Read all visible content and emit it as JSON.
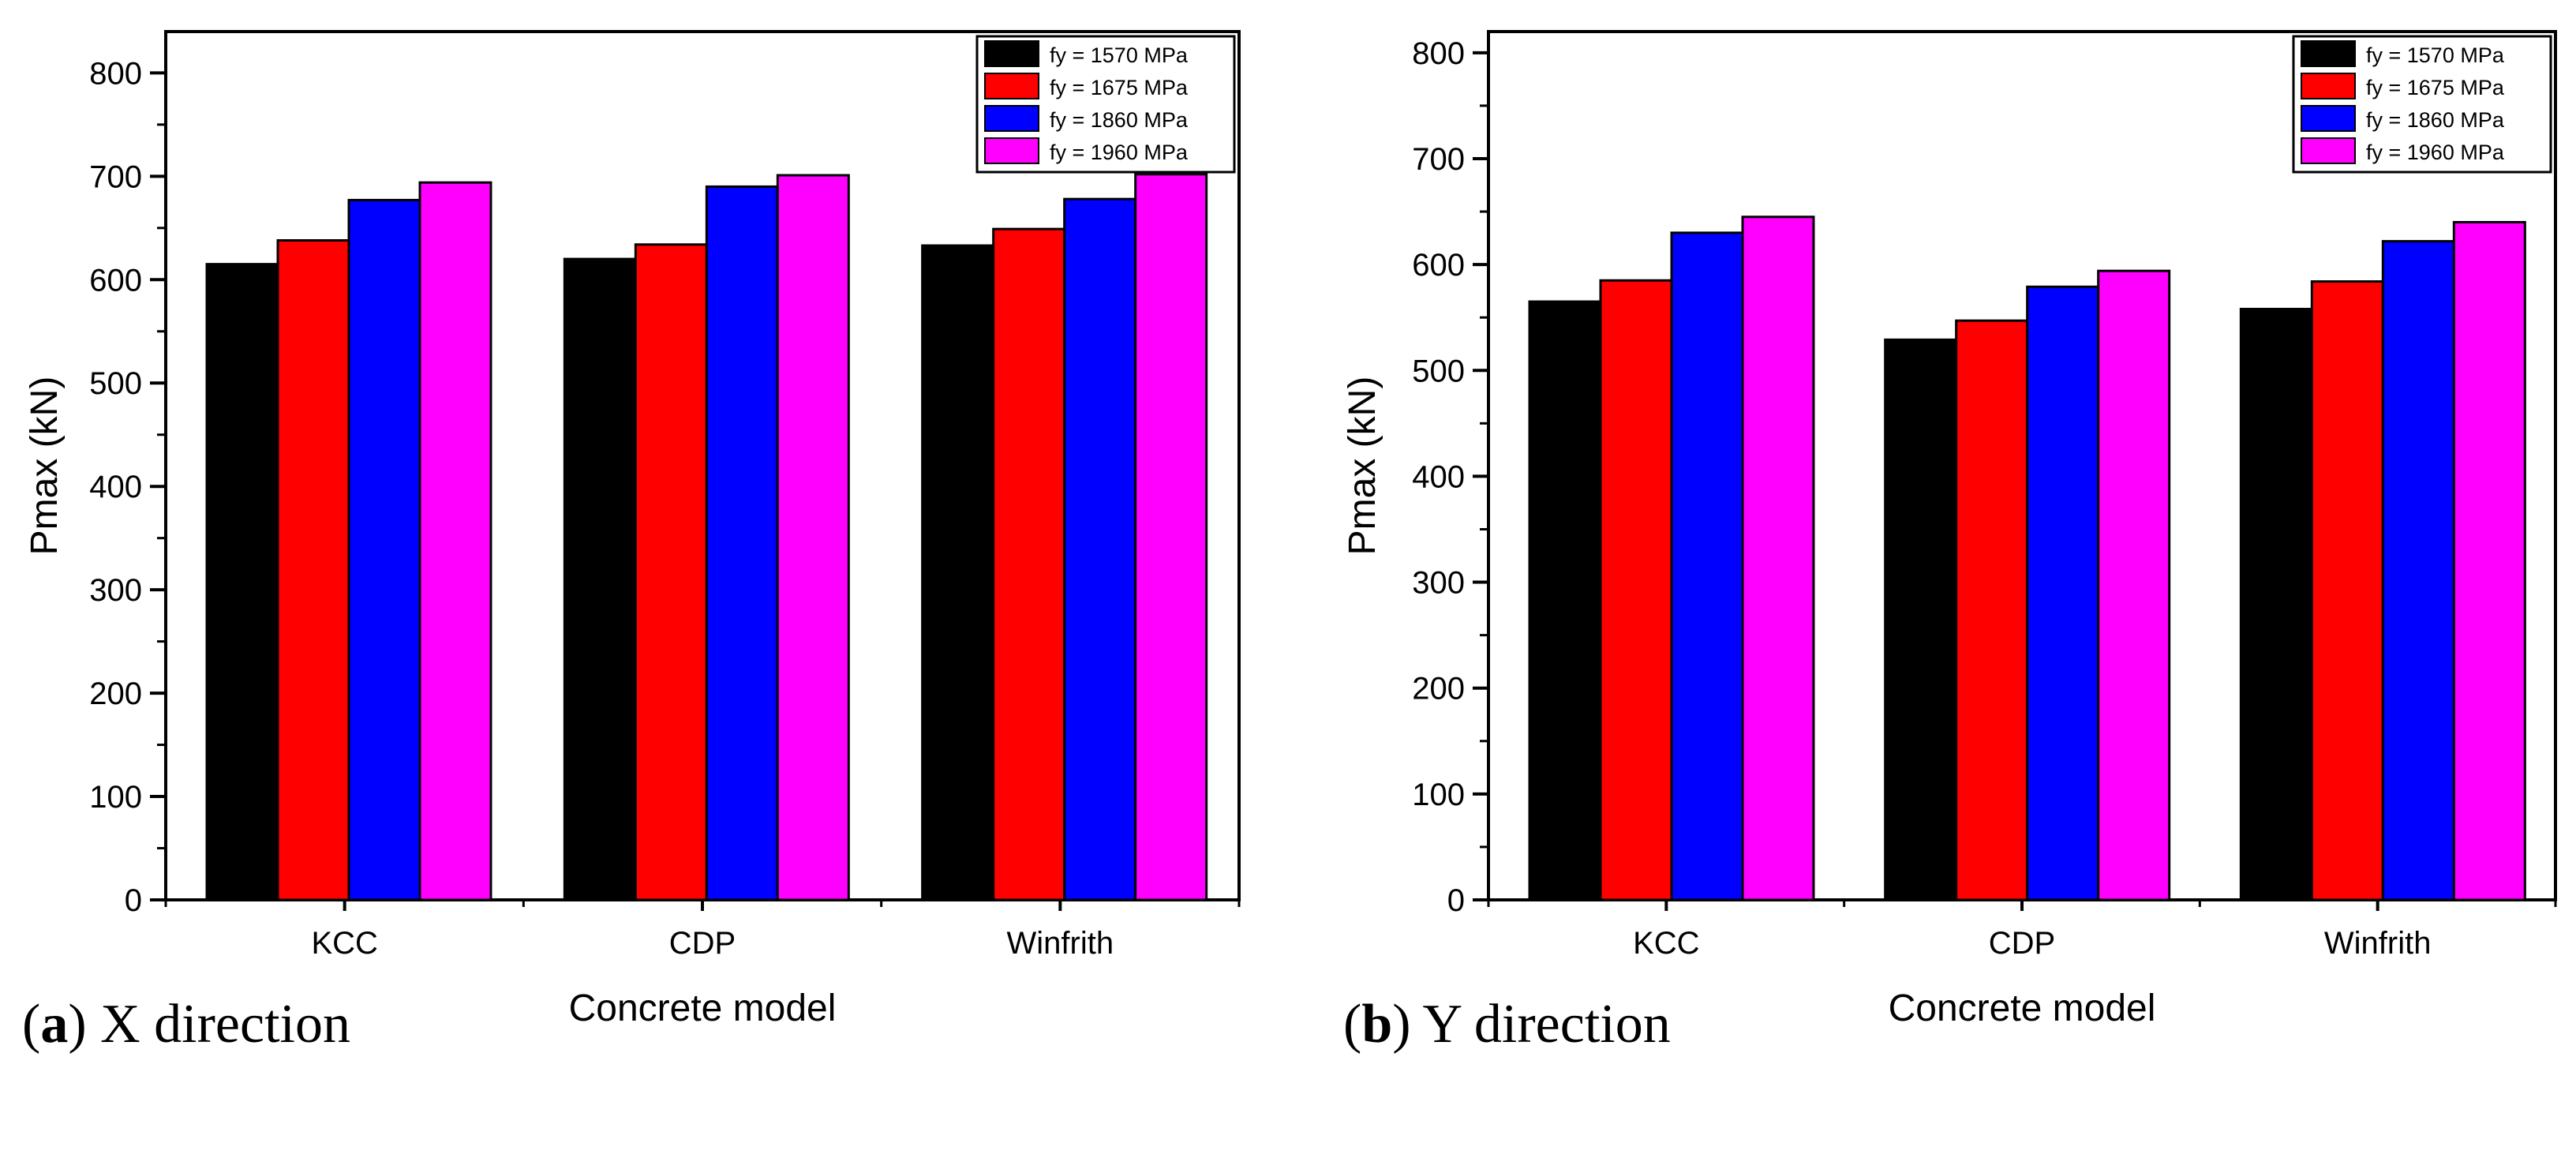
{
  "chart_data": [
    {
      "type": "bar",
      "title": "",
      "caption_letter": "a",
      "caption_text": "X direction",
      "xlabel": "Concrete model",
      "ylabel": "Pmax (kN)",
      "ylim": [
        0,
        840
      ],
      "yticks": [
        0,
        100,
        200,
        300,
        400,
        500,
        600,
        700,
        800
      ],
      "categories": [
        "KCC",
        "CDP",
        "Winfrith"
      ],
      "legend_position": "top-right",
      "series": [
        {
          "name": "fy = 1570 MPa",
          "color": "#000000",
          "values": [
            615,
            620,
            633
          ]
        },
        {
          "name": "fy = 1675 MPa",
          "color": "#ff0000",
          "values": [
            638,
            634,
            649
          ]
        },
        {
          "name": "fy = 1860 MPa",
          "color": "#0000ff",
          "values": [
            677,
            690,
            678
          ]
        },
        {
          "name": "fy = 1960 MPa",
          "color": "#ff00ff",
          "values": [
            694,
            701,
            702
          ]
        }
      ]
    },
    {
      "type": "bar",
      "title": "",
      "caption_letter": "b",
      "caption_text": "Y direction",
      "xlabel": "Concrete model",
      "ylabel": "Pmax (kN)",
      "ylim": [
        0,
        820
      ],
      "yticks": [
        0,
        100,
        200,
        300,
        400,
        500,
        600,
        700,
        800
      ],
      "categories": [
        "KCC",
        "CDP",
        "Winfrith"
      ],
      "legend_position": "top-right",
      "series": [
        {
          "name": "fy = 1570 MPa",
          "color": "#000000",
          "values": [
            565,
            529,
            558
          ]
        },
        {
          "name": "fy = 1675 MPa",
          "color": "#ff0000",
          "values": [
            585,
            547,
            584
          ]
        },
        {
          "name": "fy = 1860 MPa",
          "color": "#0000ff",
          "values": [
            630,
            579,
            622
          ]
        },
        {
          "name": "fy = 1960 MPa",
          "color": "#ff00ff",
          "values": [
            645,
            594,
            640
          ]
        }
      ]
    }
  ]
}
